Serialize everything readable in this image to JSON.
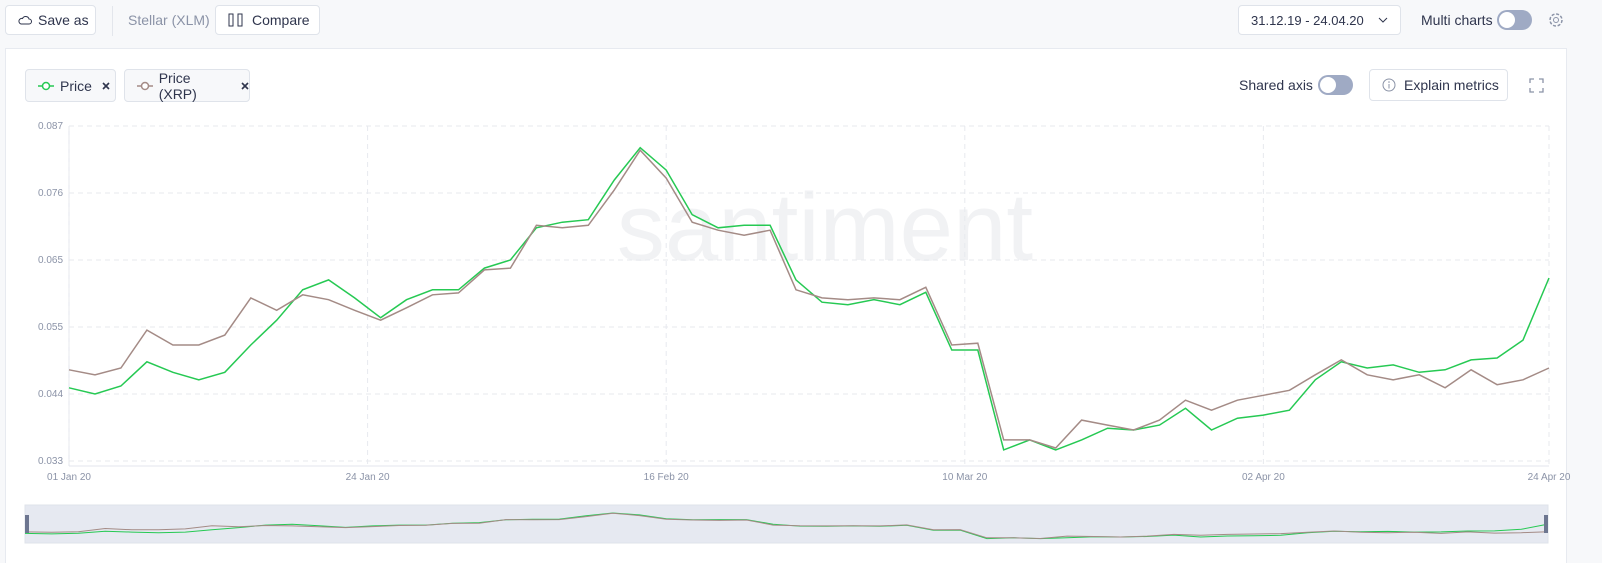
{
  "toolbar": {
    "save_as": "Save as",
    "asset": "Stellar (XLM)",
    "compare": "Compare",
    "date_range": "31.12.19 - 24.04.20",
    "multi_charts": "Multi charts"
  },
  "controls": {
    "shared_axis": "Shared axis",
    "explain_metrics": "Explain metrics"
  },
  "chart_data": {
    "type": "line",
    "watermark": "santiment",
    "x": [
      "01 Jan 20",
      "03 Jan 20",
      "05 Jan 20",
      "07 Jan 20",
      "09 Jan 20",
      "11 Jan 20",
      "13 Jan 20",
      "15 Jan 20",
      "17 Jan 20",
      "19 Jan 20",
      "21 Jan 20",
      "23 Jan 20",
      "25 Jan 20",
      "27 Jan 20",
      "29 Jan 20",
      "31 Jan 20",
      "02 Feb 20",
      "04 Feb 20",
      "06 Feb 20",
      "08 Feb 20",
      "10 Feb 20",
      "12 Feb 20",
      "14 Feb 20",
      "16 Feb 20",
      "18 Feb 20",
      "20 Feb 20",
      "22 Feb 20",
      "24 Feb 20",
      "26 Feb 20",
      "28 Feb 20",
      "01 Mar 20",
      "03 Mar 20",
      "05 Mar 20",
      "07 Mar 20",
      "09 Mar 20",
      "11 Mar 20",
      "13 Mar 20",
      "15 Mar 20",
      "17 Mar 20",
      "19 Mar 20",
      "21 Mar 20",
      "23 Mar 20",
      "25 Mar 20",
      "27 Mar 20",
      "29 Mar 20",
      "31 Mar 20",
      "02 Apr 20",
      "04 Apr 20",
      "06 Apr 20",
      "08 Apr 20",
      "10 Apr 20",
      "12 Apr 20",
      "14 Apr 20",
      "16 Apr 20",
      "18 Apr 20",
      "20 Apr 20",
      "22 Apr 20",
      "24 Apr 20"
    ],
    "series": [
      {
        "name": "Price",
        "color": "#26c953",
        "values": [
          0.0448,
          0.0438,
          0.0451,
          0.049,
          0.0473,
          0.0461,
          0.0473,
          0.0517,
          0.0557,
          0.0606,
          0.0622,
          0.0593,
          0.0561,
          0.059,
          0.0606,
          0.0606,
          0.0641,
          0.0654,
          0.0706,
          0.0715,
          0.0719,
          0.0783,
          0.0835,
          0.0799,
          0.0727,
          0.0706,
          0.071,
          0.071,
          0.0622,
          0.0586,
          0.0582,
          0.059,
          0.0582,
          0.0602,
          0.0509,
          0.0509,
          0.0348,
          0.0364,
          0.0348,
          0.0364,
          0.0383,
          0.038,
          0.0388,
          0.0415,
          0.038,
          0.0399,
          0.0404,
          0.0412,
          0.0461,
          0.049,
          0.048,
          0.0485,
          0.0473,
          0.0477,
          0.0493,
          0.0496,
          0.0525,
          0.0625
        ]
      },
      {
        "name": "Price (XRP)",
        "color": "#a48b86",
        "values": [
          0.0477,
          0.0469,
          0.048,
          0.0541,
          0.0517,
          0.0517,
          0.0533,
          0.0593,
          0.0573,
          0.0598,
          0.059,
          0.0573,
          0.0557,
          0.0577,
          0.0598,
          0.0601,
          0.0638,
          0.0641,
          0.071,
          0.0706,
          0.071,
          0.0767,
          0.0831,
          0.0786,
          0.0715,
          0.0702,
          0.0694,
          0.0702,
          0.0606,
          0.0593,
          0.059,
          0.0593,
          0.059,
          0.061,
          0.0517,
          0.052,
          0.0364,
          0.0364,
          0.0351,
          0.0396,
          0.0388,
          0.038,
          0.0396,
          0.0428,
          0.0412,
          0.0428,
          0.0436,
          0.0444,
          0.0469,
          0.0493,
          0.0469,
          0.0461,
          0.0469,
          0.0448,
          0.0477,
          0.0453,
          0.0461,
          0.048
        ]
      }
    ],
    "xlim": [
      "01 Jan 20",
      "24 Apr 20"
    ],
    "xticks": [
      "01 Jan 20",
      "24 Jan 20",
      "16 Feb 20",
      "10 Mar 20",
      "02 Apr 20",
      "24 Apr 20"
    ],
    "ylim": [
      0.0322,
      0.087
    ],
    "yticks": [
      0.033,
      {
        "value": 0.0438,
        "label": "0.044"
      },
      {
        "value": 0.0546,
        "label": "0.055"
      },
      {
        "value": 0.0654,
        "label": "0.065"
      },
      {
        "value": 0.0762,
        "label": "0.076"
      },
      0.087
    ],
    "grid": true
  }
}
